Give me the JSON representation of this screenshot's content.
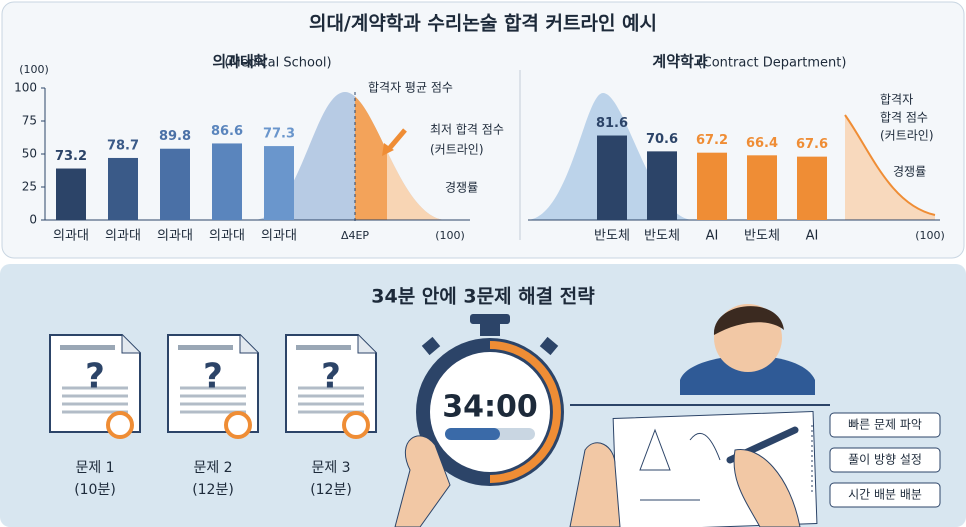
{
  "title": "의대/계약학과 수리논술 합격 커트라인 예시",
  "chart_data": [
    {
      "type": "bar",
      "title": "의과대학",
      "subtitle": "(Medical School)",
      "y_label": "(100)",
      "x_end_label": "(100)",
      "axis_note": "Δ4EP",
      "categories": [
        "의과대",
        "의과대",
        "의과대",
        "의과대",
        "의과대"
      ],
      "values": [
        39,
        47,
        54,
        58,
        56
      ],
      "bar_labels": [
        "73.2",
        "78.7",
        "89.8",
        "86.6",
        "77.3"
      ],
      "colors": [
        "#2c4468",
        "#3a5a88",
        "#4a70a6",
        "#5a85bd",
        "#6a96cc"
      ],
      "ylim": [
        0,
        100
      ],
      "yticks": [
        0,
        25,
        50,
        75,
        100
      ],
      "curve_labels": [
        "합격자 평균 점수",
        "최저 합격 점수",
        "(커트라인)",
        "경쟁률"
      ]
    },
    {
      "type": "bar",
      "title": "계약학과",
      "subtitle": "(Contract Department)",
      "x_end_label": "(100)",
      "categories": [
        "반도체",
        "반도체",
        "AI",
        "반도체",
        "AI"
      ],
      "values": [
        64,
        52,
        51,
        49,
        48
      ],
      "bar_labels": [
        "81.6",
        "70.6",
        "67.2",
        "66.4",
        "67.6"
      ],
      "colors": [
        "#2c4468",
        "#2c4468",
        "#ef8d35",
        "#ef8d35",
        "#ef8d35"
      ],
      "ylim": [
        0,
        100
      ],
      "curve_labels": [
        "합격자",
        "합격 점수",
        "(커트라인)",
        "경쟁률"
      ]
    }
  ],
  "strategy": {
    "title": "34분 안에 3문제 해결 전략",
    "timer": "34:00",
    "problems": [
      {
        "label": "문제 1",
        "time": "(10분)"
      },
      {
        "label": "문제 2",
        "time": "(12분)"
      },
      {
        "label": "문제 3",
        "time": "(12분)"
      }
    ],
    "steps": [
      "빠른 문제 파악",
      "풀이 방향 설정",
      "시간 배분 배분"
    ]
  }
}
